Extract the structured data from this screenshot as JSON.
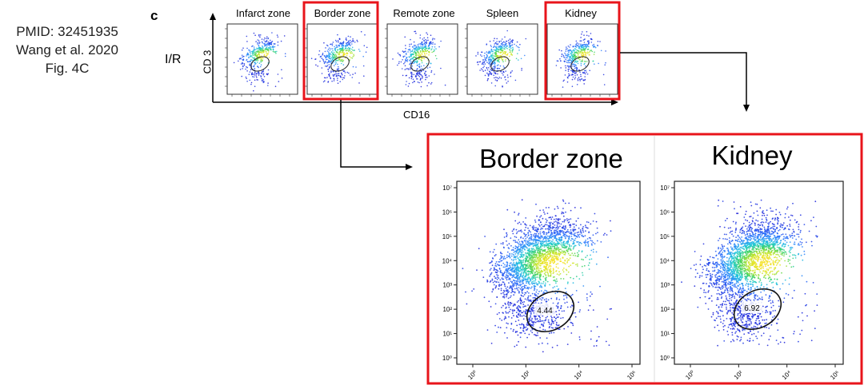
{
  "citation": {
    "pmid": "PMID: 32451935",
    "authors": "Wang et al. 2020",
    "figure": "Fig. 4C"
  },
  "panel_letter": "c",
  "condition_label": "I/R",
  "axes": {
    "y_label": "CD 3",
    "x_label": "CD16"
  },
  "thumbnails": [
    {
      "title": "Infarct zone",
      "highlighted": false
    },
    {
      "title": "Border zone",
      "highlighted": true
    },
    {
      "title": "Remote zone",
      "highlighted": false
    },
    {
      "title": "Spleen",
      "highlighted": false
    },
    {
      "title": "Kidney",
      "highlighted": true
    }
  ],
  "zoom_panels": [
    {
      "title": "Border zone",
      "gate_value": "4.44"
    },
    {
      "title": "Kidney",
      "gate_value": "6.92"
    }
  ],
  "zoom_axis": {
    "y_ticks": [
      "10⁰",
      "10¹",
      "10²",
      "10³",
      "10⁴",
      "10⁵",
      "10⁶",
      "10⁷"
    ],
    "x_ticks": [
      "10⁰",
      "10²",
      "10⁴",
      "10⁶"
    ]
  },
  "colors": {
    "highlight": "#e8141b",
    "density_low": "#1a1ad6",
    "density_high": "#f4e11c"
  }
}
